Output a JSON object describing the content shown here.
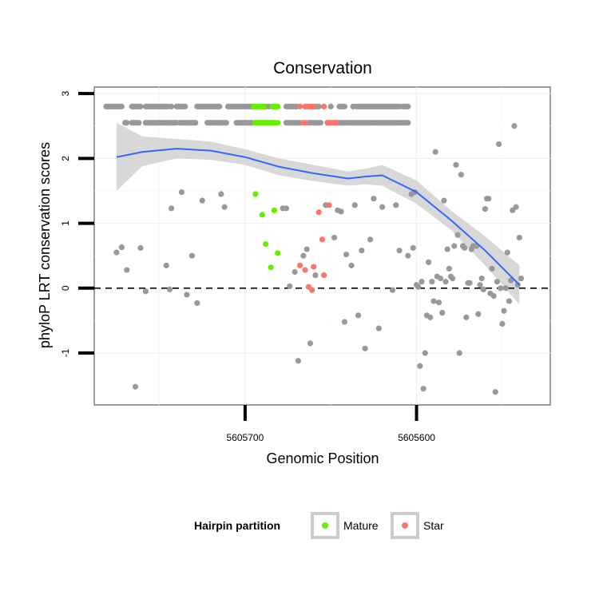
{
  "chart_data": {
    "type": "scatter",
    "title": "Conservation",
    "xlabel": "Genomic Position",
    "ylabel": "phyloP LRT conservation scores",
    "x_reversed": true,
    "xlim": [
      5605522,
      5605788
    ],
    "ylim": [
      -1.8,
      3.1
    ],
    "x_ticks": [
      5605700,
      5605600
    ],
    "x_tick_labels": [
      "5605700",
      "5605600"
    ],
    "y_ticks": [
      -1,
      0,
      1,
      2,
      3
    ],
    "y_tick_labels": [
      "-1",
      "0",
      "1",
      "2",
      "3"
    ],
    "grid": true,
    "reference_line": {
      "y": 0,
      "style": "dashed"
    },
    "legend": {
      "title": "Hairpin partition",
      "position": "bottom",
      "entries": [
        {
          "label": "Mature",
          "color": "#66ee00"
        },
        {
          "label": "Star",
          "color": "#f8766d"
        }
      ]
    },
    "colors": {
      "other": "#999999",
      "mature": "#66ee00",
      "star": "#f8766d",
      "smooth": "#3366ff",
      "band": "#d4d4d4"
    },
    "series": [
      {
        "group": "other",
        "points": [
          [
            5605775,
            0.55
          ],
          [
            5605772,
            0.63
          ],
          [
            5605769,
            0.28
          ],
          [
            5605764,
            -1.52
          ],
          [
            5605761,
            0.62
          ],
          [
            5605758,
            -0.05
          ],
          [
            5605746,
            0.35
          ],
          [
            5605744,
            -0.02
          ],
          [
            5605743,
            1.23
          ],
          [
            5605737,
            1.48
          ],
          [
            5605734,
            -0.1
          ],
          [
            5605731,
            0.5
          ],
          [
            5605728,
            -0.23
          ],
          [
            5605725,
            1.35
          ],
          [
            5605714,
            1.45
          ],
          [
            5605712,
            1.25
          ],
          [
            5605678,
            1.23
          ],
          [
            5605676,
            1.23
          ],
          [
            5605674,
            0.03
          ],
          [
            5605671,
            0.25
          ],
          [
            5605669,
            -1.12
          ],
          [
            5605666,
            0.5
          ],
          [
            5605664,
            0.6
          ],
          [
            5605662,
            -0.85
          ],
          [
            5605659,
            0.2
          ],
          [
            5605653,
            1.28
          ],
          [
            5605648,
            0.78
          ],
          [
            5605646,
            1.2
          ],
          [
            5605644,
            1.18
          ],
          [
            5605642,
            -0.52
          ],
          [
            5605641,
            0.52
          ],
          [
            5605638,
            0.35
          ],
          [
            5605636,
            1.28
          ],
          [
            5605634,
            -0.42
          ],
          [
            5605632,
            0.58
          ],
          [
            5605630,
            -0.93
          ],
          [
            5605627,
            0.75
          ],
          [
            5605625,
            1.38
          ],
          [
            5605622,
            -0.62
          ],
          [
            5605620,
            1.25
          ],
          [
            5605614,
            -0.03
          ],
          [
            5605612,
            1.28
          ],
          [
            5605610,
            0.58
          ],
          [
            5605605,
            0.5
          ],
          [
            5605603,
            1.45
          ],
          [
            5605602,
            0.62
          ],
          [
            5605601,
            1.48
          ],
          [
            5605600,
            0.05
          ],
          [
            5605599,
            0.02
          ],
          [
            5605598,
            -1.2
          ],
          [
            5605597,
            0.1
          ],
          [
            5605596,
            -1.55
          ],
          [
            5605595,
            -1.0
          ],
          [
            5605594,
            -0.42
          ],
          [
            5605593,
            0.4
          ],
          [
            5605592,
            -0.45
          ],
          [
            5605591,
            0.1
          ],
          [
            5605590,
            -0.2
          ],
          [
            5605589,
            2.1
          ],
          [
            5605588,
            0.18
          ],
          [
            5605587,
            -0.22
          ],
          [
            5605586,
            0.15
          ],
          [
            5605585,
            -0.38
          ],
          [
            5605584,
            1.35
          ],
          [
            5605583,
            0.1
          ],
          [
            5605582,
            0.6
          ],
          [
            5605581,
            0.3
          ],
          [
            5605580,
            0.18
          ],
          [
            5605579,
            0.15
          ],
          [
            5605578,
            0.65
          ],
          [
            5605577,
            1.9
          ],
          [
            5605576,
            0.82
          ],
          [
            5605575,
            -1.0
          ],
          [
            5605574,
            1.75
          ],
          [
            5605573,
            0.65
          ],
          [
            5605572,
            0.62
          ],
          [
            5605571,
            -0.45
          ],
          [
            5605570,
            0.08
          ],
          [
            5605569,
            0.08
          ],
          [
            5605568,
            0.6
          ],
          [
            5605567,
            0.65
          ],
          [
            5605566,
            0.65
          ],
          [
            5605565,
            0.65
          ],
          [
            5605564,
            -0.4
          ],
          [
            5605563,
            0.05
          ],
          [
            5605562,
            0.15
          ],
          [
            5605561,
            -0.02
          ],
          [
            5605560,
            1.22
          ],
          [
            5605559,
            1.38
          ],
          [
            5605558,
            1.38
          ],
          [
            5605557,
            -0.08
          ],
          [
            5605556,
            0.3
          ],
          [
            5605555,
            -0.12
          ],
          [
            5605554,
            -1.6
          ],
          [
            5605553,
            0.1
          ],
          [
            5605552,
            2.22
          ],
          [
            5605551,
            0.0
          ],
          [
            5605550,
            -0.55
          ],
          [
            5605549,
            -0.35
          ],
          [
            5605548,
            0.0
          ],
          [
            5605547,
            0.55
          ],
          [
            5605546,
            -0.2
          ],
          [
            5605545,
            0.12
          ],
          [
            5605544,
            1.2
          ],
          [
            5605543,
            2.5
          ],
          [
            5605542,
            1.25
          ],
          [
            5605541,
            0.05
          ],
          [
            5605540,
            0.78
          ],
          [
            5605539,
            0.15
          ]
        ]
      },
      {
        "group": "mature",
        "points": [
          [
            5605694,
            1.45
          ],
          [
            5605690,
            1.13
          ],
          [
            5605688,
            0.68
          ],
          [
            5605685,
            0.32
          ],
          [
            5605683,
            1.2
          ],
          [
            5605681,
            0.54
          ]
        ]
      },
      {
        "group": "star",
        "points": [
          [
            5605668,
            0.35
          ],
          [
            5605665,
            0.28
          ],
          [
            5605663,
            0.02
          ],
          [
            5605661,
            -0.03
          ],
          [
            5605660,
            0.33
          ],
          [
            5605657,
            1.17
          ],
          [
            5605655,
            0.75
          ],
          [
            5605654,
            0.2
          ],
          [
            5605651,
            1.28
          ]
        ]
      }
    ],
    "top_rows": [
      {
        "y": 2.8,
        "other_x": [
          5605781,
          5605780,
          5605779,
          5605778,
          5605777,
          5605776,
          5605775,
          5605774,
          5605773,
          5605772,
          5605766,
          5605765,
          5605764,
          5605763,
          5605762,
          5605761,
          5605758,
          5605757,
          5605756,
          5605755,
          5605754,
          5605753,
          5605752,
          5605751,
          5605750,
          5605749,
          5605748,
          5605747,
          5605746,
          5605745,
          5605743,
          5605740,
          5605739,
          5605738,
          5605737,
          5605736,
          5605735,
          5605728,
          5605727,
          5605726,
          5605725,
          5605724,
          5605723,
          5605722,
          5605721,
          5605720,
          5605719,
          5605718,
          5605717,
          5605716,
          5605715,
          5605710,
          5605709,
          5605708,
          5605707,
          5605706,
          5605705,
          5605704,
          5605703,
          5605702,
          5605701,
          5605700,
          5605699,
          5605698,
          5605697,
          5605696,
          5605688,
          5605686,
          5605676,
          5605675,
          5605674,
          5605673,
          5605672,
          5605671,
          5605670,
          5605660,
          5605659,
          5605658,
          5605657,
          5605650,
          5605645,
          5605644,
          5605643,
          5605642,
          5605637,
          5605635,
          5605634,
          5605633,
          5605632,
          5605631,
          5605630,
          5605629,
          5605628,
          5605627,
          5605626,
          5605625,
          5605624,
          5605623,
          5605622,
          5605621,
          5605620,
          5605619,
          5605618,
          5605617,
          5605616,
          5605615,
          5605614,
          5605613,
          5605612,
          5605611,
          5605610,
          5605608,
          5605607,
          5605606,
          5605605
        ],
        "mature_x": [
          5605695,
          5605694,
          5605693,
          5605692,
          5605691,
          5605690,
          5605689,
          5605684,
          5605683,
          5605682,
          5605681
        ],
        "star_x": [
          5605668,
          5605665,
          5605664,
          5605663,
          5605662,
          5605661,
          5605660,
          5605654
        ]
      },
      {
        "y": 2.55,
        "other_x": [
          5605770,
          5605769,
          5605766,
          5605765,
          5605764,
          5605763,
          5605762,
          5605758,
          5605757,
          5605756,
          5605755,
          5605754,
          5605753,
          5605752,
          5605751,
          5605750,
          5605749,
          5605748,
          5605747,
          5605746,
          5605745,
          5605744,
          5605743,
          5605742,
          5605741,
          5605740,
          5605738,
          5605737,
          5605736,
          5605735,
          5605734,
          5605733,
          5605732,
          5605731,
          5605730,
          5605729,
          5605722,
          5605721,
          5605720,
          5605719,
          5605718,
          5605717,
          5605716,
          5605715,
          5605714,
          5605713,
          5605712,
          5605711,
          5605705,
          5605704,
          5605703,
          5605702,
          5605701,
          5605700,
          5605699,
          5605698,
          5605697,
          5605696,
          5605676,
          5605675,
          5605674,
          5605673,
          5605672,
          5605671,
          5605670,
          5605669,
          5605668,
          5605663,
          5605662,
          5605661,
          5605660,
          5605659,
          5605658,
          5605657,
          5605656,
          5605646,
          5605645,
          5605644,
          5605643,
          5605642,
          5605641,
          5605640,
          5605639,
          5605638,
          5605637,
          5605636,
          5605635,
          5605634,
          5605633,
          5605632,
          5605631,
          5605630,
          5605629,
          5605628,
          5605627,
          5605626,
          5605625,
          5605624,
          5605623,
          5605622,
          5605621,
          5605620,
          5605619,
          5605618,
          5605617,
          5605616,
          5605615,
          5605614,
          5605613,
          5605612,
          5605611,
          5605610,
          5605609,
          5605608,
          5605607,
          5605606,
          5605605
        ],
        "mature_x": [
          5605694,
          5605693,
          5605692,
          5605691,
          5605690,
          5605689,
          5605688,
          5605687,
          5605686,
          5605685,
          5605684,
          5605683,
          5605682,
          5605681
        ],
        "star_x": [
          5605666,
          5605665,
          5605652,
          5605651,
          5605650,
          5605649,
          5605648,
          5605647
        ]
      }
    ],
    "smooth": {
      "method": "loess",
      "x": [
        5605775,
        5605760,
        5605740,
        5605720,
        5605700,
        5605680,
        5605660,
        5605640,
        5605630,
        5605620,
        5605600,
        5605580,
        5605560,
        5605540
      ],
      "y": [
        2.02,
        2.1,
        2.15,
        2.12,
        2.02,
        1.87,
        1.77,
        1.69,
        1.72,
        1.74,
        1.48,
        1.05,
        0.58,
        0.05
      ],
      "lower": [
        1.5,
        1.88,
        2.0,
        1.98,
        1.9,
        1.74,
        1.65,
        1.58,
        1.6,
        1.58,
        1.3,
        0.9,
        0.35,
        -0.25
      ],
      "upper": [
        2.55,
        2.34,
        2.3,
        2.26,
        2.14,
        2.0,
        1.9,
        1.8,
        1.84,
        1.9,
        1.66,
        1.2,
        0.8,
        0.35
      ]
    }
  }
}
